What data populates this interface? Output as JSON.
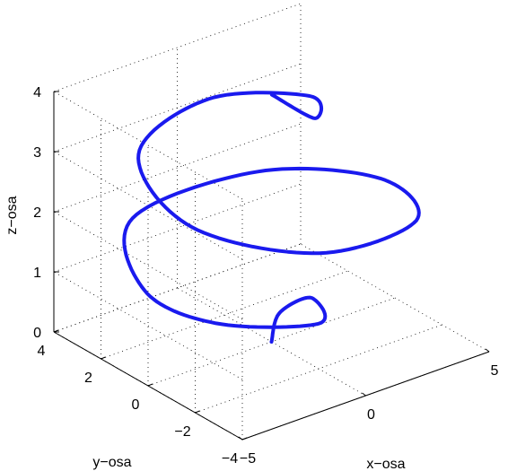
{
  "chart_data": {
    "type": "line",
    "plot": "3d",
    "title": "",
    "xlabel": "x−osa",
    "ylabel": "y−osa",
    "zlabel": "z−osa",
    "xlim": [
      -5,
      5
    ],
    "ylim": [
      -4,
      4
    ],
    "zlim": [
      0,
      4
    ],
    "x_ticks": [
      {
        "value": -5,
        "label": "−5"
      },
      {
        "value": 0,
        "label": "0"
      },
      {
        "value": 5,
        "label": "5"
      }
    ],
    "y_ticks": [
      {
        "value": -4,
        "label": "−4"
      },
      {
        "value": -2,
        "label": "−2"
      },
      {
        "value": 0,
        "label": "0"
      },
      {
        "value": 2,
        "label": "2"
      },
      {
        "value": 4,
        "label": "4"
      }
    ],
    "z_ticks": [
      {
        "value": 0,
        "label": "0"
      },
      {
        "value": 1,
        "label": "1"
      },
      {
        "value": 2,
        "label": "2"
      },
      {
        "value": 3,
        "label": "3"
      },
      {
        "value": 4,
        "label": "4"
      }
    ],
    "grid": true,
    "series_color": "#1a1aee",
    "series": [
      {
        "shape": "spiral: radius grows then shrinks with height",
        "points": [
          [
            0.0,
            0.0,
            0.0
          ],
          [
            0.8,
            0.5,
            0.25
          ],
          [
            1.6,
            0.0,
            0.5
          ],
          [
            0.0,
            -2.0,
            0.75
          ],
          [
            -3.2,
            -1.0,
            1.0
          ],
          [
            -4.2,
            1.0,
            1.25
          ],
          [
            -2.0,
            3.8,
            1.5
          ],
          [
            2.5,
            3.2,
            1.75
          ],
          [
            4.6,
            0.2,
            2.0
          ],
          [
            3.0,
            -3.0,
            2.25
          ],
          [
            -1.5,
            -3.6,
            2.5
          ],
          [
            -4.2,
            -1.0,
            2.75
          ],
          [
            -3.0,
            2.5,
            3.0
          ],
          [
            0.5,
            3.2,
            3.25
          ],
          [
            2.5,
            1.0,
            3.5
          ],
          [
            1.0,
            -0.8,
            3.75
          ],
          [
            0.3,
            0.3,
            4.0
          ]
        ]
      }
    ]
  }
}
